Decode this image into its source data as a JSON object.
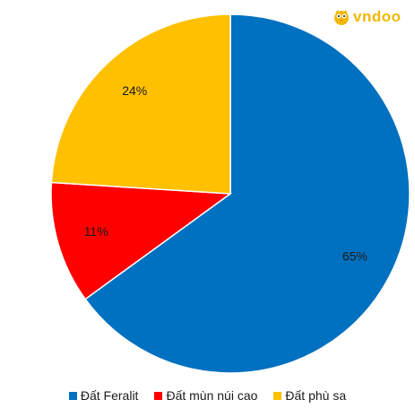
{
  "logo": {
    "text": "vndoo",
    "icon": "owl-mascot-icon",
    "color": "#f2b705"
  },
  "chart_data": {
    "type": "pie",
    "title": "",
    "categories": [
      "Đất Feralit",
      "Đất mùn núi cao",
      "Đất phù sa"
    ],
    "values": [
      65,
      11,
      24
    ],
    "labels": [
      "65%",
      "11%",
      "24%"
    ],
    "colors": [
      "#0070c0",
      "#ff0000",
      "#ffc000"
    ],
    "start": "12 o'clock",
    "direction": "clockwise",
    "legend_position": "bottom"
  }
}
